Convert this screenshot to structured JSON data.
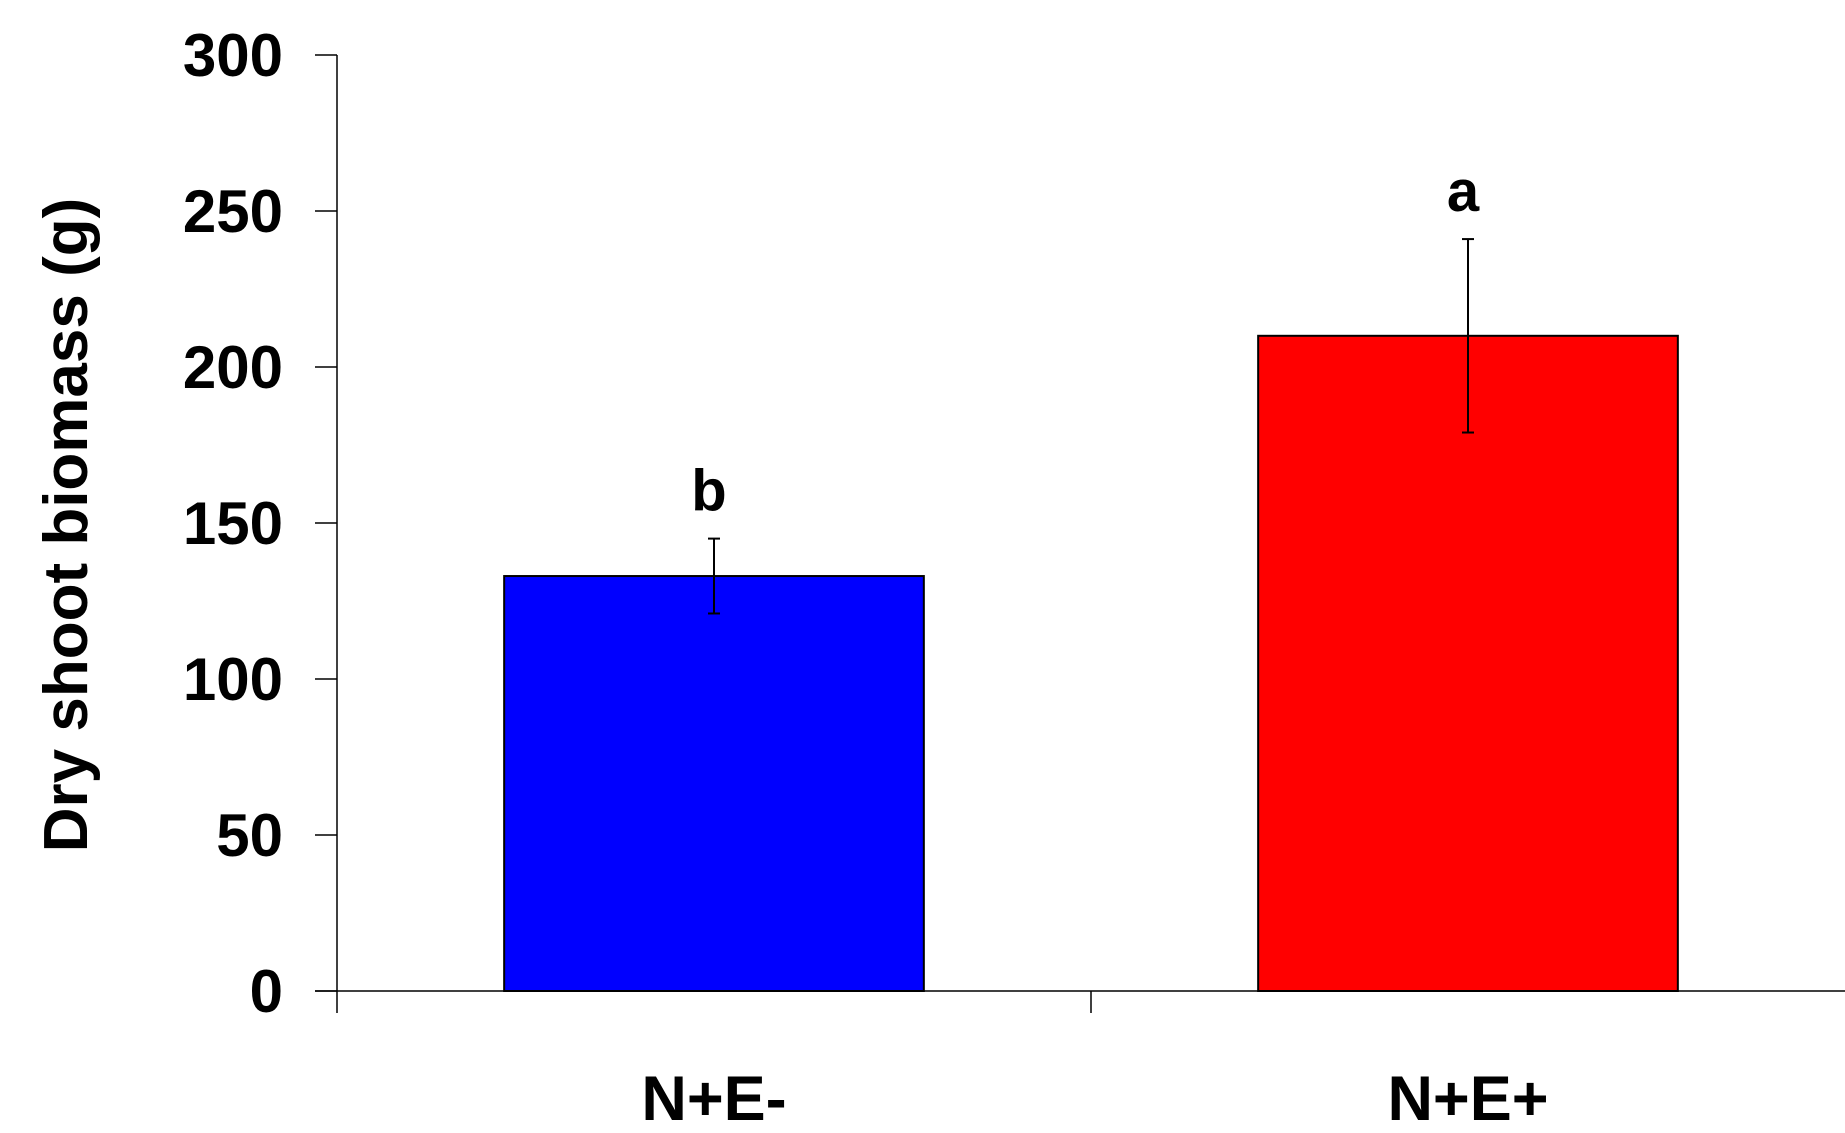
{
  "chart_data": {
    "type": "bar",
    "title": "",
    "xlabel": "",
    "ylabel": "Dry shoot biomass (g)",
    "ylim": [
      0,
      300
    ],
    "yticks": [
      "0",
      "50",
      "100",
      "150",
      "200",
      "250",
      "300"
    ],
    "categories": [
      "N+E-",
      "N+E+"
    ],
    "values": [
      133,
      210
    ],
    "errors": [
      12,
      31
    ],
    "significance": [
      "b",
      "a"
    ],
    "colors": [
      "#0000ff",
      "#ff0000"
    ],
    "grid": false,
    "legend": "none"
  }
}
